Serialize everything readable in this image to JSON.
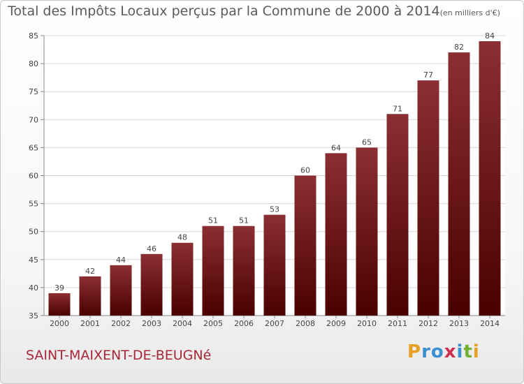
{
  "chart_data": {
    "type": "bar",
    "title": "Total des Impôts Locaux perçus par la Commune de 2000 à 2014",
    "title_unit": "(en milliers d'€)",
    "categories": [
      "2000",
      "2001",
      "2002",
      "2003",
      "2004",
      "2005",
      "2006",
      "2007",
      "2008",
      "2009",
      "2010",
      "2011",
      "2012",
      "2013",
      "2014"
    ],
    "values": [
      39,
      42,
      44,
      46,
      48,
      51,
      51,
      53,
      60,
      64,
      65,
      71,
      77,
      82,
      84
    ],
    "ylim": [
      35,
      85
    ],
    "yticks": [
      35,
      40,
      45,
      50,
      55,
      60,
      65,
      70,
      75,
      80,
      85
    ],
    "grid": true,
    "bar_color_top": "#8b2f33",
    "bar_color_bottom": "#4a0000"
  },
  "footer": {
    "commune": "SAINT-MAIXENT-DE-BEUGNé",
    "commune_color": "#a8283a",
    "logo_letters": [
      "P",
      "r",
      "o",
      "x",
      "i",
      "t",
      "i"
    ],
    "logo_colors": [
      "#e8a020",
      "#3a8fd0",
      "#3a8fd0",
      "#d03050",
      "#3a8fd0",
      "#70b030",
      "#e8a020"
    ]
  }
}
